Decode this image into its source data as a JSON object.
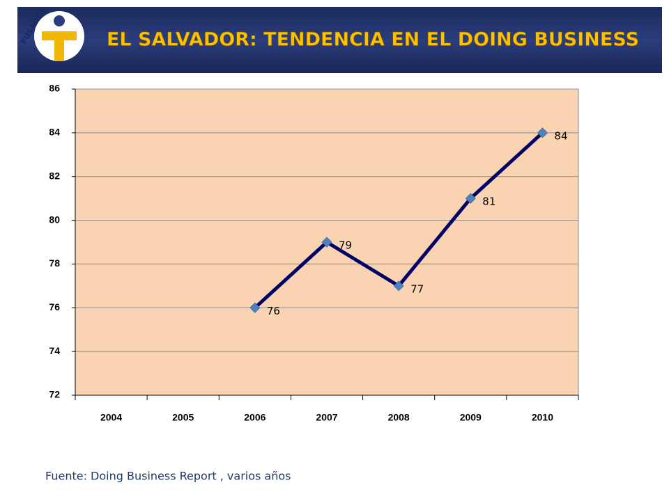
{
  "logo_text": "FUSADES",
  "chart_data": {
    "type": "line",
    "title": "EL SALVADOR: TENDENCIA EN EL DOING BUSINESS",
    "categories": [
      "2004",
      "2005",
      "2006",
      "2007",
      "2008",
      "2009",
      "2010"
    ],
    "values": [
      null,
      null,
      76,
      79,
      77,
      81,
      84
    ],
    "color": "#000066",
    "marker_color": "#4f81bd",
    "background": "#fad3b3",
    "ylim": [
      72,
      86
    ],
    "yticks": [
      72,
      74,
      76,
      78,
      80,
      82,
      84,
      86
    ],
    "grid": true,
    "source": "Fuente: Doing Business Report , varios años"
  }
}
